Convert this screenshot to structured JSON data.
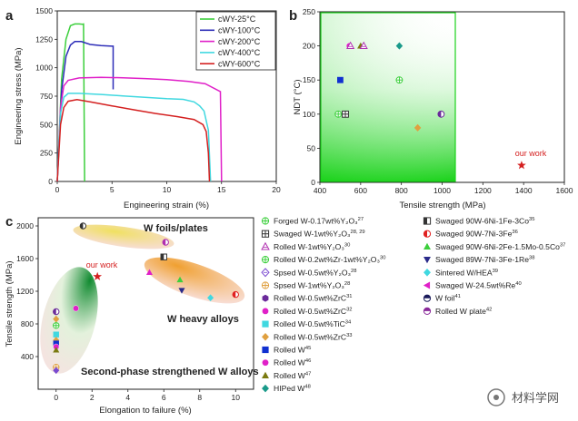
{
  "chart_data": [
    {
      "panel": "a",
      "type": "line",
      "xlabel": "Engineering strain (%)",
      "ylabel": "Engineering stress (MPa)",
      "xlim": [
        0,
        20
      ],
      "ylim": [
        0,
        1500
      ],
      "xticks": [
        "0",
        "5",
        "10",
        "15",
        "20"
      ],
      "yticks": [
        "0",
        "250",
        "500",
        "750",
        "1000",
        "1250",
        "1500"
      ],
      "legend_position": "top-right",
      "series": [
        {
          "name": "cWY-25°C",
          "color": "#3ccf3c",
          "points": [
            [
              0,
              0
            ],
            [
              0.4,
              900
            ],
            [
              0.8,
              1250
            ],
            [
              1.2,
              1370
            ],
            [
              1.6,
              1385
            ],
            [
              2.0,
              1385
            ],
            [
              2.3,
              1383
            ],
            [
              2.4,
              1385
            ],
            [
              2.5,
              0
            ]
          ]
        },
        {
          "name": "cWY-100°C",
          "color": "#2e2eb8",
          "points": [
            [
              0,
              0
            ],
            [
              0.4,
              800
            ],
            [
              0.8,
              1100
            ],
            [
              1.2,
              1200
            ],
            [
              1.6,
              1230
            ],
            [
              2.2,
              1230
            ],
            [
              3.0,
              1205
            ],
            [
              4.0,
              1195
            ],
            [
              5.0,
              1190
            ],
            [
              5.1,
              1190
            ],
            [
              5.1,
              810
            ]
          ]
        },
        {
          "name": "cWY-200°C",
          "color": "#e020c8",
          "points": [
            [
              0,
              0
            ],
            [
              0.3,
              650
            ],
            [
              0.6,
              840
            ],
            [
              1.0,
              890
            ],
            [
              2.0,
              910
            ],
            [
              4,
              915
            ],
            [
              6,
              912
            ],
            [
              8,
              905
            ],
            [
              10,
              895
            ],
            [
              12,
              880
            ],
            [
              13.5,
              860
            ],
            [
              14.9,
              790
            ],
            [
              15.0,
              0
            ]
          ]
        },
        {
          "name": "cWY-400°C",
          "color": "#40d8e0",
          "points": [
            [
              0,
              0
            ],
            [
              0.3,
              600
            ],
            [
              0.6,
              740
            ],
            [
              1.0,
              775
            ],
            [
              2.0,
              775
            ],
            [
              4,
              765
            ],
            [
              6,
              752
            ],
            [
              8,
              740
            ],
            [
              10,
              728
            ],
            [
              11.5,
              722
            ],
            [
              12.5,
              700
            ],
            [
              13.0,
              665
            ],
            [
              13.4,
              620
            ],
            [
              13.8,
              450
            ],
            [
              14.0,
              0
            ]
          ]
        },
        {
          "name": "cWY-600°C",
          "color": "#d42020",
          "points": [
            [
              0,
              0
            ],
            [
              0.3,
              500
            ],
            [
              0.6,
              650
            ],
            [
              1.0,
              705
            ],
            [
              1.8,
              720
            ],
            [
              3,
              700
            ],
            [
              5,
              665
            ],
            [
              7,
              630
            ],
            [
              9,
              598
            ],
            [
              11,
              570
            ],
            [
              12.5,
              545
            ],
            [
              13.3,
              500
            ],
            [
              13.6,
              440
            ],
            [
              13.8,
              250
            ],
            [
              13.9,
              0
            ]
          ]
        }
      ]
    },
    {
      "panel": "b",
      "type": "scatter",
      "xlabel": "Tensile strength (MPa)",
      "ylabel": "NDT (°C)",
      "xlim": [
        400,
        1600
      ],
      "ylim": [
        0,
        250
      ],
      "xticks": [
        "400",
        "600",
        "800",
        "1000",
        "1200",
        "1400",
        "1600"
      ],
      "yticks": [
        "0",
        "50",
        "100",
        "150",
        "200",
        "250"
      ],
      "points": [
        {
          "x": 490,
          "y": 100,
          "marker": "circle-plus",
          "color": "#3ccf3c"
        },
        {
          "x": 525,
          "y": 100,
          "marker": "square-plus",
          "color": "#333333"
        },
        {
          "x": 545,
          "y": 200,
          "marker": "circle",
          "color": "#e020c8"
        },
        {
          "x": 550,
          "y": 200,
          "marker": "triangle-open",
          "color": "#b030b0"
        },
        {
          "x": 500,
          "y": 150,
          "marker": "square",
          "color": "#1030d0"
        },
        {
          "x": 600,
          "y": 200,
          "marker": "triangle",
          "color": "#7a7a10"
        },
        {
          "x": 615,
          "y": 200,
          "marker": "triangle-open",
          "color": "#b030b0"
        },
        {
          "x": 790,
          "y": 200,
          "marker": "diamond",
          "color": "#1a9a8a"
        },
        {
          "x": 790,
          "y": 150,
          "marker": "circle-plus",
          "color": "#3ccf3c"
        },
        {
          "x": 880,
          "y": 80,
          "marker": "diamond",
          "color": "#e0a040"
        },
        {
          "x": 995,
          "y": 100,
          "marker": "circle-half",
          "color": "#6a2a9a"
        },
        {
          "x": 1390,
          "y": 25,
          "marker": "star",
          "color": "#d42020"
        }
      ],
      "annotations": [
        "our work"
      ]
    },
    {
      "panel": "c",
      "type": "scatter",
      "xlabel": "Elongation to failure (%)",
      "ylabel": "Tensile strength (MPa)",
      "xlim": [
        -1,
        11
      ],
      "ylim": [
        0,
        2100
      ],
      "xticks": [
        "0",
        "2",
        "4",
        "6",
        "8",
        "10"
      ],
      "yticks": [
        "400",
        "800",
        "1200",
        "1600",
        "2000"
      ],
      "regions": [
        "W foils/plates",
        "W heavy alloys",
        "Second-phase strengthened W alloys"
      ],
      "annotations": [
        "our work"
      ],
      "points": [
        {
          "x": 0,
          "y": 950,
          "marker": "circle-half",
          "color": "#6a2a9a"
        },
        {
          "x": 0,
          "y": 860,
          "marker": "diamond",
          "color": "#e0a040"
        },
        {
          "x": 0,
          "y": 780,
          "marker": "circle-plus",
          "color": "#3ccf3c"
        },
        {
          "x": 0,
          "y": 670,
          "marker": "square",
          "color": "#40d8e0"
        },
        {
          "x": 0,
          "y": 600,
          "marker": "diamond",
          "color": "#e0a040"
        },
        {
          "x": 0,
          "y": 560,
          "marker": "square",
          "color": "#1030d0"
        },
        {
          "x": 0,
          "y": 520,
          "marker": "circle",
          "color": "#e020c8"
        },
        {
          "x": 0,
          "y": 480,
          "marker": "triangle",
          "color": "#7a7a10"
        },
        {
          "x": 0,
          "y": 270,
          "marker": "circle-plus",
          "color": "#e0a040"
        },
        {
          "x": 0,
          "y": 230,
          "marker": "diamond",
          "color": "#7a4ad0"
        },
        {
          "x": 1.1,
          "y": 990,
          "marker": "circle",
          "color": "#e020c8"
        },
        {
          "x": 1.5,
          "y": 2000,
          "marker": "circle-half",
          "color": "#333333"
        },
        {
          "x": 2.3,
          "y": 1380,
          "marker": "star",
          "color": "#d42020"
        },
        {
          "x": 5.2,
          "y": 1430,
          "marker": "triangle",
          "color": "#e020c8"
        },
        {
          "x": 6.0,
          "y": 1620,
          "marker": "square-half",
          "color": "#333333"
        },
        {
          "x": 6.1,
          "y": 1800,
          "marker": "circle-half",
          "color": "#b030b0"
        },
        {
          "x": 6.9,
          "y": 1340,
          "marker": "triangle",
          "color": "#3ccf3c"
        },
        {
          "x": 7.0,
          "y": 1210,
          "marker": "triangle-down",
          "color": "#2a2a8a"
        },
        {
          "x": 8.6,
          "y": 1120,
          "marker": "diamond",
          "color": "#40d8e0"
        },
        {
          "x": 10,
          "y": 1160,
          "marker": "circle-half",
          "color": "#e02020"
        }
      ],
      "legend": [
        {
          "text": "Forged W-0.17wt%Y₂O₃",
          "ref": "27",
          "marker": "circle-plus",
          "color": "#3ccf3c"
        },
        {
          "text": "Swaged W-1wt%Y₂O₃",
          "ref": "28, 29",
          "marker": "square-plus",
          "color": "#333333"
        },
        {
          "text": "Rolled W-1wt%Y₂O₃",
          "ref": "30",
          "marker": "triangle-open",
          "color": "#b030b0"
        },
        {
          "text": "Rolled W-0.2wt%Zr-1wt%Y₂O₃",
          "ref": "30",
          "marker": "circle-plus",
          "color": "#3ccf3c"
        },
        {
          "text": "Spsed W-0.5wt%Y₂O₃",
          "ref": "28",
          "marker": "diamond-open",
          "color": "#7a4ad0"
        },
        {
          "text": "Spsed W-1wt%Y₂O₃",
          "ref": "28",
          "marker": "circle-plus",
          "color": "#e0a040"
        },
        {
          "text": "Rolled W-0.5wt%ZrC",
          "ref": "31",
          "marker": "hexagon",
          "color": "#6a2a9a"
        },
        {
          "text": "Rolled W-0.5wt%ZrC",
          "ref": "32",
          "marker": "circle",
          "color": "#e020c8"
        },
        {
          "text": "Rolled W-0.5wt%TiC",
          "ref": "34",
          "marker": "square",
          "color": "#40d8e0"
        },
        {
          "text": "Rolled W-0.5wt%ZrC",
          "ref": "33",
          "marker": "diamond",
          "color": "#e0a040"
        },
        {
          "text": "Rolled W",
          "ref": "45",
          "marker": "square",
          "color": "#1030d0"
        },
        {
          "text": "Rolled W",
          "ref": "46",
          "marker": "circle",
          "color": "#e020c8"
        },
        {
          "text": "Rolled W",
          "ref": "47",
          "marker": "triangle",
          "color": "#7a7a10"
        },
        {
          "text": "HIPed W",
          "ref": "48",
          "marker": "diamond",
          "color": "#1a9a8a"
        },
        {
          "text": "Swaged 90W-6Ni-1Fe-3Co",
          "ref": "35",
          "marker": "square-half",
          "color": "#333333"
        },
        {
          "text": "Swaged 90W-7Ni-3Fe",
          "ref": "36",
          "marker": "circle-half",
          "color": "#e02020"
        },
        {
          "text": "Swaged 90W-6Ni-2Fe-1.5Mo-0.5Co",
          "ref": "37",
          "marker": "triangle",
          "color": "#3ccf3c"
        },
        {
          "text": "Swaged 89W-7Ni-3Fe-1Re",
          "ref": "38",
          "marker": "triangle-down",
          "color": "#2a2a8a"
        },
        {
          "text": "Sintered W/HEA",
          "ref": "39",
          "marker": "diamond",
          "color": "#40d8e0"
        },
        {
          "text": "Swaged W-24.5wt%Re",
          "ref": "40",
          "marker": "triangle-left",
          "color": "#e020c8"
        },
        {
          "text": "W foil",
          "ref": "41",
          "marker": "circle-half-top",
          "color": "#1a1a5a"
        },
        {
          "text": "Rolled W plate",
          "ref": "42",
          "marker": "circle-half-top",
          "color": "#8a2a9a"
        }
      ]
    }
  ],
  "labels": {
    "a": "a",
    "b": "b",
    "c": "c"
  },
  "watermark": {
    "text": "材料学网"
  }
}
